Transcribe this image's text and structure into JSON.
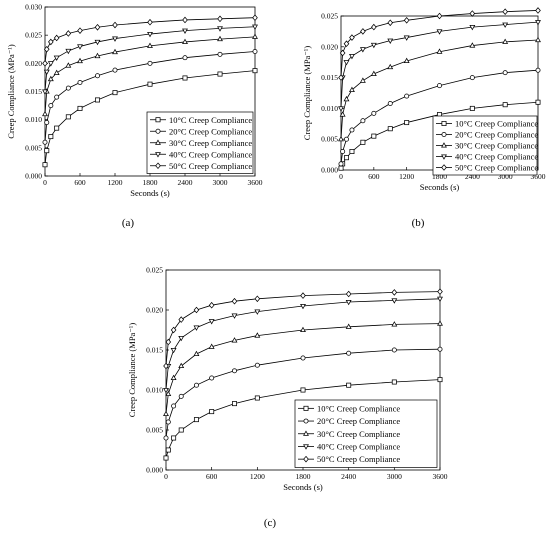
{
  "chart_data": [
    {
      "panel_label": "(a)",
      "type": "line",
      "ylabel": "Creep Compliance (MPa⁻¹)",
      "xlabel": "Seconds (s)",
      "xlim": [
        0,
        3600
      ],
      "ylim": [
        0,
        0.03
      ],
      "xticks": [
        "0",
        "600",
        "1200",
        "1800",
        "2400",
        "3000",
        "3600"
      ],
      "yticks": [
        "0.000",
        "0.005",
        "0.010",
        "0.015",
        "0.020",
        "0.025",
        "0.030"
      ],
      "legend_position": "bottom-right",
      "series": [
        {
          "name": "10°C Creep Compliance",
          "marker": "square",
          "x": [
            0,
            30,
            100,
            200,
            400,
            600,
            900,
            1200,
            1800,
            2400,
            3000,
            3600
          ],
          "values": [
            0.002,
            0.0045,
            0.007,
            0.0085,
            0.0105,
            0.012,
            0.0135,
            0.0148,
            0.0163,
            0.0174,
            0.0181,
            0.0187
          ]
        },
        {
          "name": "20°C Creep Compliance",
          "marker": "circle",
          "x": [
            0,
            30,
            100,
            200,
            400,
            600,
            900,
            1200,
            1800,
            2400,
            3000,
            3600
          ],
          "values": [
            0.006,
            0.0095,
            0.0125,
            0.014,
            0.0156,
            0.0166,
            0.0178,
            0.0188,
            0.02,
            0.021,
            0.0216,
            0.0221
          ]
        },
        {
          "name": "30°C Creep Compliance",
          "marker": "triangle-up",
          "x": [
            0,
            30,
            100,
            200,
            400,
            600,
            900,
            1200,
            1800,
            2400,
            3000,
            3600
          ],
          "values": [
            0.011,
            0.015,
            0.0172,
            0.0183,
            0.0196,
            0.0204,
            0.0213,
            0.022,
            0.0231,
            0.0238,
            0.0243,
            0.0247
          ]
        },
        {
          "name": "40°C Creep Compliance",
          "marker": "triangle-down",
          "x": [
            0,
            30,
            100,
            200,
            400,
            600,
            900,
            1200,
            1800,
            2400,
            3000,
            3600
          ],
          "values": [
            0.015,
            0.0185,
            0.02,
            0.021,
            0.0222,
            0.023,
            0.0238,
            0.0244,
            0.0252,
            0.0258,
            0.0262,
            0.0265
          ]
        },
        {
          "name": "50°C Creep Compliance",
          "marker": "diamond",
          "x": [
            0,
            30,
            100,
            200,
            400,
            600,
            900,
            1200,
            1800,
            2400,
            3000,
            3600
          ],
          "values": [
            0.02,
            0.0225,
            0.0238,
            0.0245,
            0.0253,
            0.0258,
            0.0264,
            0.0268,
            0.0273,
            0.0277,
            0.0279,
            0.0281
          ]
        }
      ]
    },
    {
      "panel_label": "(b)",
      "type": "line",
      "ylabel": "Creep Compliance (MPa⁻¹)",
      "xlabel": "Seconds (s)",
      "xlim": [
        0,
        3600
      ],
      "ylim": [
        0,
        0.025
      ],
      "xticks": [
        "0",
        "600",
        "1200",
        "1800",
        "2400",
        "3000",
        "3600"
      ],
      "yticks": [
        "0.000",
        "0.005",
        "0.010",
        "0.015",
        "0.020",
        "0.025"
      ],
      "legend_position": "bottom-right",
      "series": [
        {
          "name": "10°C Creep Compliance",
          "marker": "square",
          "x": [
            0,
            30,
            100,
            200,
            400,
            600,
            900,
            1200,
            1800,
            2400,
            3000,
            3600
          ],
          "values": [
            0.0003,
            0.001,
            0.002,
            0.003,
            0.0045,
            0.0055,
            0.0067,
            0.0077,
            0.009,
            0.01,
            0.0106,
            0.011
          ]
        },
        {
          "name": "20°C Creep Compliance",
          "marker": "circle",
          "x": [
            0,
            30,
            100,
            200,
            400,
            600,
            900,
            1200,
            1800,
            2400,
            3000,
            3600
          ],
          "values": [
            0.001,
            0.003,
            0.005,
            0.0065,
            0.008,
            0.0092,
            0.0108,
            0.012,
            0.0137,
            0.015,
            0.0158,
            0.0162
          ]
        },
        {
          "name": "30°C Creep Compliance",
          "marker": "triangle-up",
          "x": [
            0,
            30,
            100,
            200,
            400,
            600,
            900,
            1200,
            1800,
            2400,
            3000,
            3600
          ],
          "values": [
            0.005,
            0.009,
            0.0115,
            0.013,
            0.0145,
            0.0156,
            0.0167,
            0.0177,
            0.0192,
            0.0202,
            0.0208,
            0.0211
          ]
        },
        {
          "name": "40°C Creep Compliance",
          "marker": "triangle-down",
          "x": [
            0,
            30,
            100,
            200,
            400,
            600,
            900,
            1200,
            1800,
            2400,
            3000,
            3600
          ],
          "values": [
            0.01,
            0.015,
            0.0175,
            0.0185,
            0.0196,
            0.0203,
            0.021,
            0.0215,
            0.0225,
            0.0232,
            0.0236,
            0.024
          ]
        },
        {
          "name": "50°C Creep Compliance",
          "marker": "diamond",
          "x": [
            0,
            30,
            100,
            200,
            400,
            600,
            900,
            1200,
            1800,
            2400,
            3000,
            3600
          ],
          "values": [
            0.015,
            0.019,
            0.0205,
            0.0215,
            0.0225,
            0.0232,
            0.0239,
            0.0243,
            0.025,
            0.0254,
            0.0257,
            0.0259
          ]
        }
      ]
    },
    {
      "panel_label": "(c)",
      "type": "line",
      "ylabel": "Creep Compliance (MPa⁻¹)",
      "xlabel": "Seconds (s)",
      "xlim": [
        0,
        3600
      ],
      "ylim": [
        0,
        0.025
      ],
      "xticks": [
        "0",
        "600",
        "1200",
        "1800",
        "2400",
        "3000",
        "3600"
      ],
      "yticks": [
        "0.000",
        "0.005",
        "0.010",
        "0.015",
        "0.020",
        "0.025"
      ],
      "legend_position": "bottom-right",
      "series": [
        {
          "name": "10°C Creep Compliance",
          "marker": "square",
          "x": [
            0,
            30,
            100,
            200,
            400,
            600,
            900,
            1200,
            1800,
            2400,
            3000,
            3600
          ],
          "values": [
            0.0015,
            0.0025,
            0.004,
            0.005,
            0.0063,
            0.0073,
            0.0083,
            0.009,
            0.01,
            0.0106,
            0.011,
            0.0113
          ]
        },
        {
          "name": "20°C Creep Compliance",
          "marker": "circle",
          "x": [
            0,
            30,
            100,
            200,
            400,
            600,
            900,
            1200,
            1800,
            2400,
            3000,
            3600
          ],
          "values": [
            0.004,
            0.006,
            0.008,
            0.0092,
            0.0106,
            0.0115,
            0.0124,
            0.0131,
            0.014,
            0.0146,
            0.015,
            0.0151
          ]
        },
        {
          "name": "30°C Creep Compliance",
          "marker": "triangle-up",
          "x": [
            0,
            30,
            100,
            200,
            400,
            600,
            900,
            1200,
            1800,
            2400,
            3000,
            3600
          ],
          "values": [
            0.007,
            0.0095,
            0.0115,
            0.013,
            0.0145,
            0.0154,
            0.0162,
            0.0168,
            0.0175,
            0.0179,
            0.0182,
            0.0183
          ]
        },
        {
          "name": "40°C Creep Compliance",
          "marker": "triangle-down",
          "x": [
            0,
            30,
            100,
            200,
            400,
            600,
            900,
            1200,
            1800,
            2400,
            3000,
            3600
          ],
          "values": [
            0.01,
            0.013,
            0.015,
            0.0165,
            0.0178,
            0.0186,
            0.0193,
            0.0198,
            0.0205,
            0.021,
            0.0212,
            0.0214
          ]
        },
        {
          "name": "50°C Creep Compliance",
          "marker": "diamond",
          "x": [
            0,
            30,
            100,
            200,
            400,
            600,
            900,
            1200,
            1800,
            2400,
            3000,
            3600
          ],
          "values": [
            0.013,
            0.016,
            0.0175,
            0.0188,
            0.02,
            0.0206,
            0.0211,
            0.0214,
            0.0218,
            0.022,
            0.0222,
            0.0223
          ]
        }
      ]
    }
  ]
}
